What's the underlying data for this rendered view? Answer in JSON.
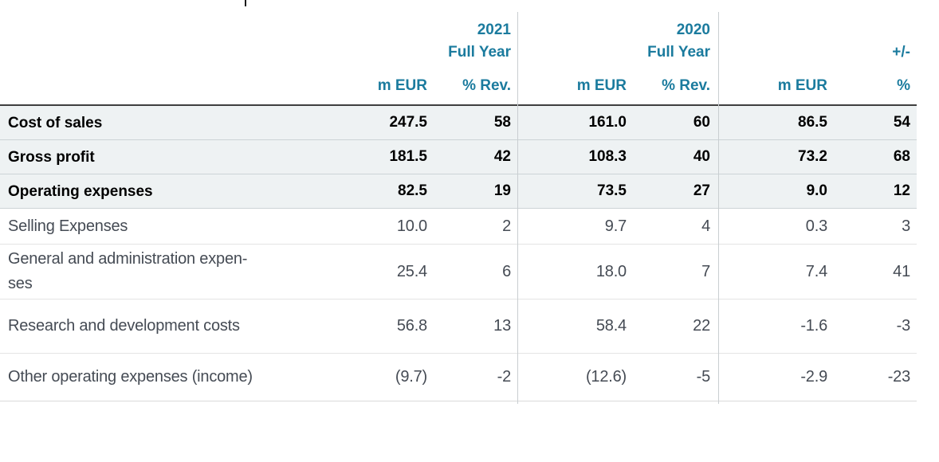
{
  "colors": {
    "accent_teal": "#1b7b9e",
    "bold_row_bg": "#eef2f3",
    "header_rule": "#3f3f3f",
    "row_rule_light": "#e4e4e4",
    "row_rule_medium": "#ccd3d6",
    "divider_line": "#c9ced1",
    "bold_text": "#000000",
    "light_text": "#454b54"
  },
  "table": {
    "header": {
      "groups": [
        {
          "year": "2021",
          "period": "Full Year",
          "unit_col": "m EUR",
          "pct_col": "% Rev."
        },
        {
          "year": "2020",
          "period": "Full Year",
          "unit_col": "m EUR",
          "pct_col": "% Rev."
        },
        {
          "year": "",
          "period": "+/-",
          "unit_col": "m EUR",
          "pct_col": "%"
        }
      ]
    },
    "rows": [
      {
        "label": "Cost of sales",
        "style": "bold",
        "values": [
          "247.5",
          "58",
          "161.0",
          "60",
          "86.5",
          "54"
        ]
      },
      {
        "label": "Gross profit",
        "style": "bold",
        "values": [
          "181.5",
          "42",
          "108.3",
          "40",
          "73.2",
          "68"
        ]
      },
      {
        "label": "Operating expenses",
        "style": "bold",
        "values": [
          "82.5",
          "19",
          "73.5",
          "27",
          "9.0",
          "12"
        ]
      },
      {
        "label": "Selling Expenses",
        "style": "light",
        "values": [
          "10.0",
          "2",
          "9.7",
          "4",
          "0.3",
          "3"
        ]
      },
      {
        "label": "General and administration expen-\nses",
        "style": "light",
        "values": [
          "25.4",
          "6",
          "18.0",
          "7",
          "7.4",
          "41"
        ]
      },
      {
        "label": "Research and development costs",
        "style": "light",
        "values": [
          "56.8",
          "13",
          "58.4",
          "22",
          "-1.6",
          "-3"
        ]
      },
      {
        "label": "Other operating expenses (income)",
        "style": "light",
        "values": [
          "(9.7)",
          "-2",
          "(12.6)",
          "-5",
          "-2.9",
          "-23"
        ]
      }
    ]
  }
}
